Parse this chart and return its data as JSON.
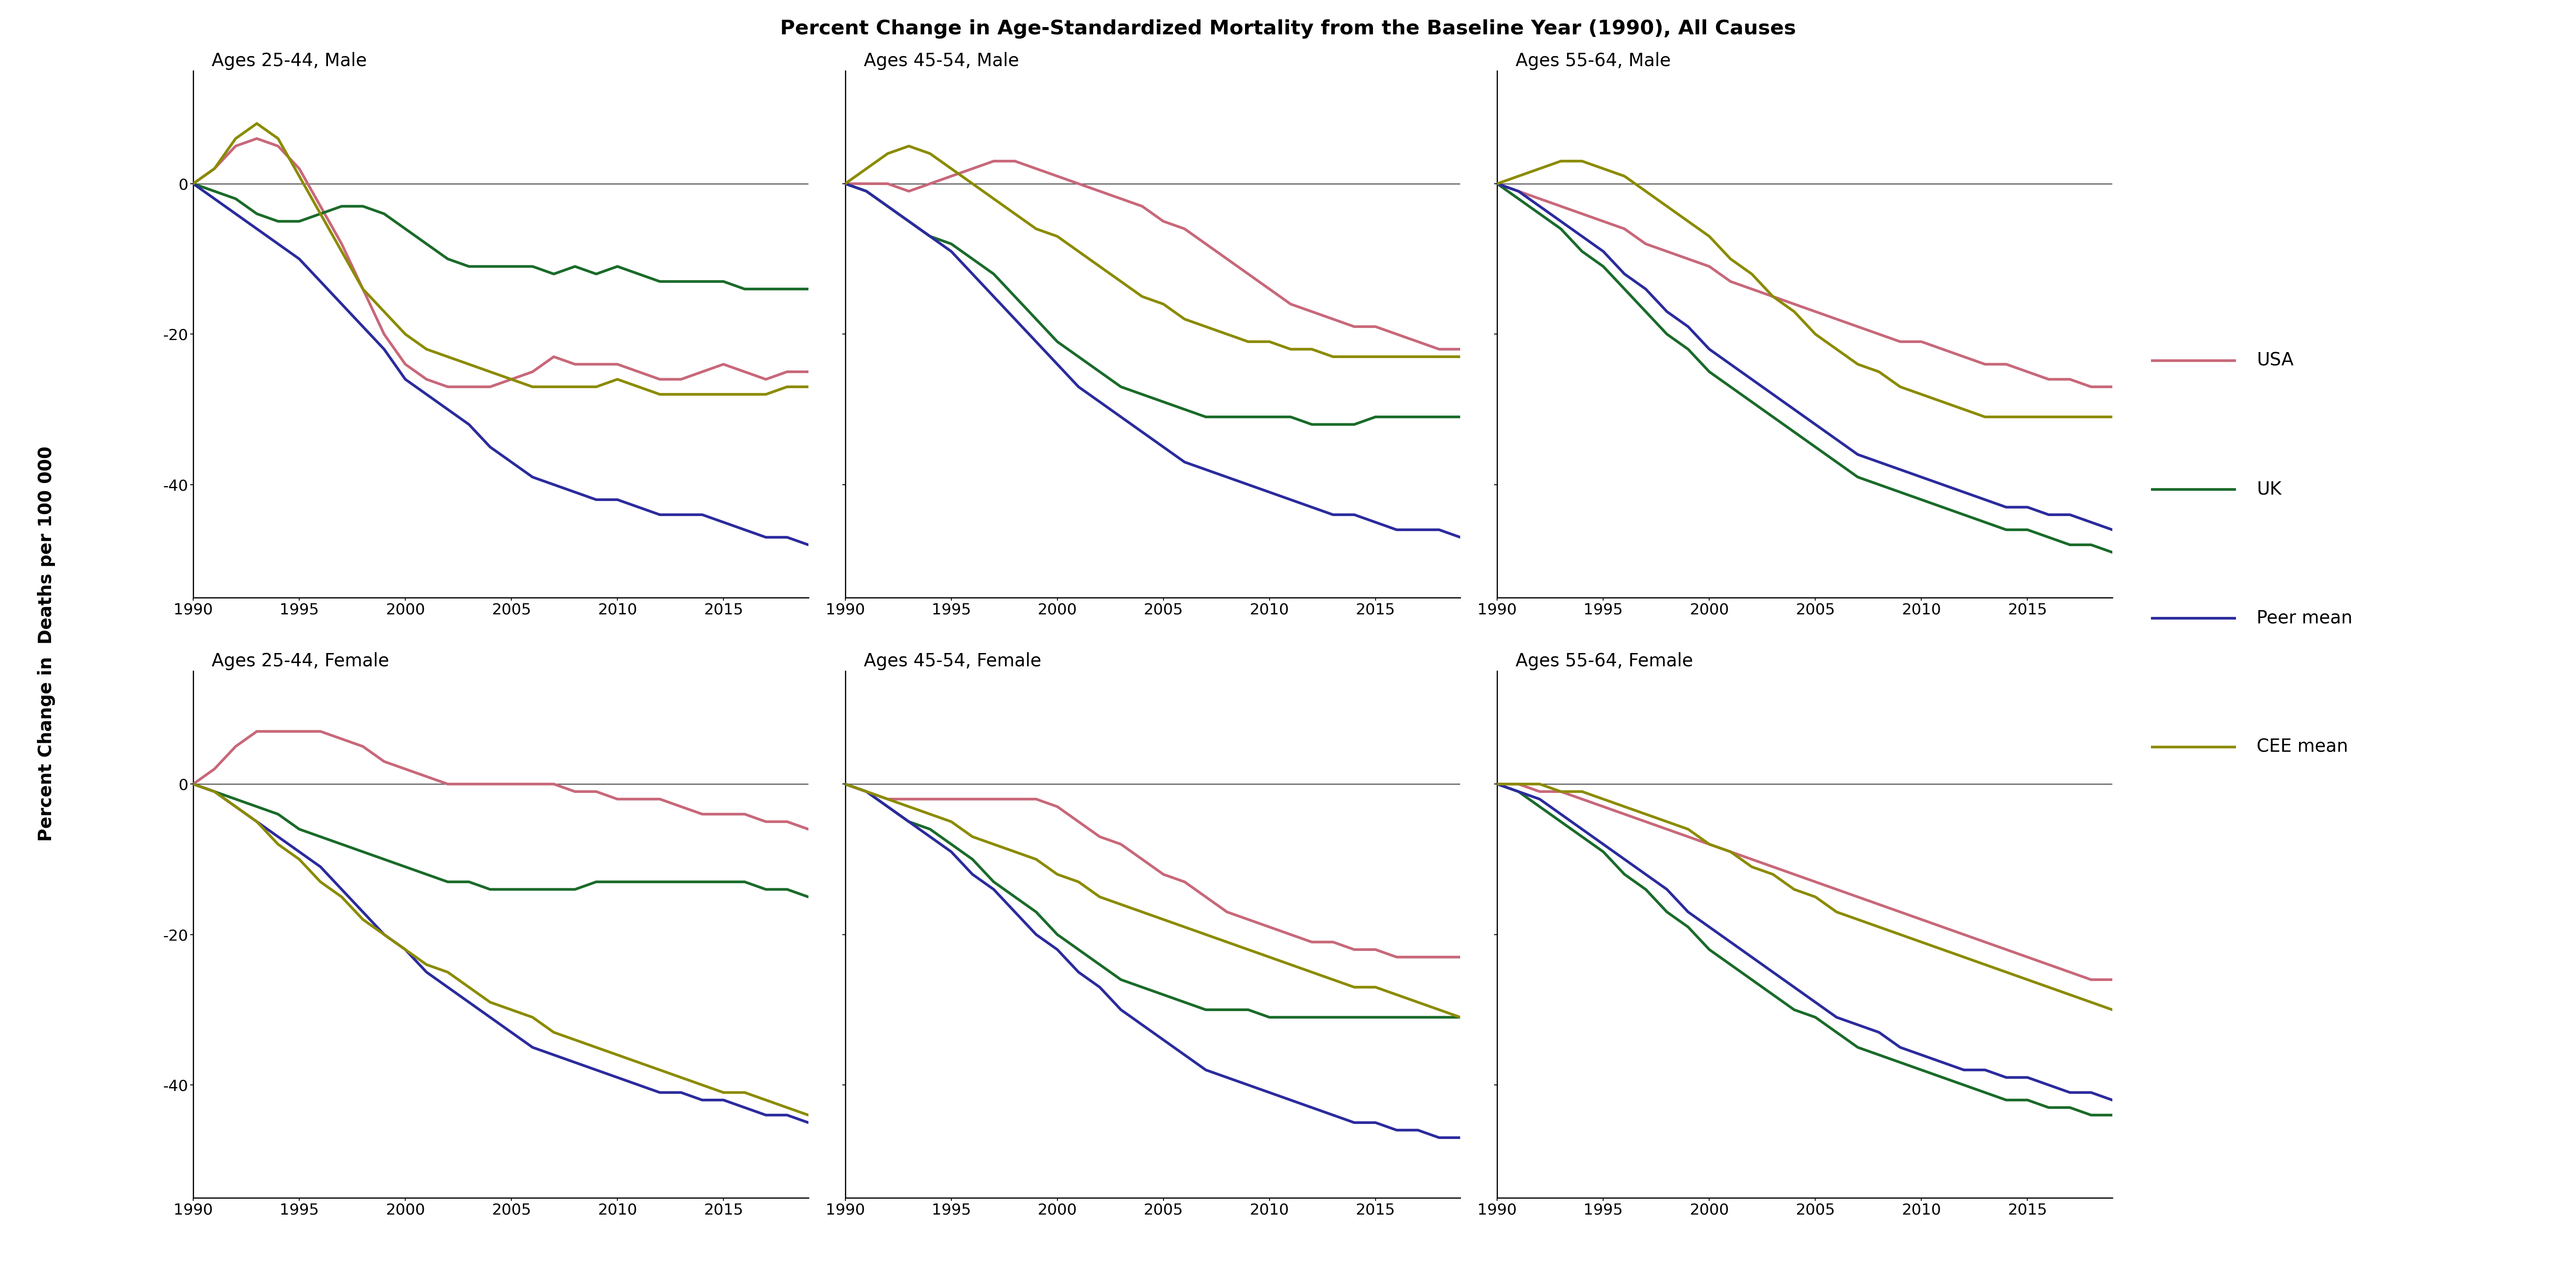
{
  "title": "Percent Change in Age-Standardized Mortality from the Baseline Year (1990), All Causes",
  "ylabel": "Percent Change in  Deaths per 100 000",
  "colors": {
    "USA": "#c8687a",
    "UK": "#1a6b2a",
    "Peer mean": "#2b2b9e",
    "CEE mean": "#8b8b00"
  },
  "years": [
    1990,
    1991,
    1992,
    1993,
    1994,
    1995,
    1996,
    1997,
    1998,
    1999,
    2000,
    2001,
    2002,
    2003,
    2004,
    2005,
    2006,
    2007,
    2008,
    2009,
    2010,
    2011,
    2012,
    2013,
    2014,
    2015,
    2016,
    2017,
    2018,
    2019
  ],
  "panels": {
    "Ages 25-44, Male": {
      "USA": [
        0,
        2,
        5,
        6,
        5,
        2,
        -3,
        -8,
        -14,
        -20,
        -24,
        -26,
        -27,
        -27,
        -27,
        -26,
        -25,
        -23,
        -24,
        -24,
        -24,
        -25,
        -26,
        -26,
        -25,
        -24,
        -25,
        -26,
        -25,
        -25
      ],
      "UK": [
        0,
        -1,
        -2,
        -4,
        -5,
        -5,
        -4,
        -3,
        -3,
        -4,
        -6,
        -8,
        -10,
        -11,
        -11,
        -11,
        -11,
        -12,
        -11,
        -12,
        -11,
        -12,
        -13,
        -13,
        -13,
        -13,
        -14,
        -14,
        -14,
        -14
      ],
      "Peer mean": [
        0,
        -2,
        -4,
        -6,
        -8,
        -10,
        -13,
        -16,
        -19,
        -22,
        -26,
        -28,
        -30,
        -32,
        -35,
        -37,
        -39,
        -40,
        -41,
        -42,
        -42,
        -43,
        -44,
        -44,
        -44,
        -45,
        -46,
        -47,
        -47,
        -48
      ],
      "CEE mean": [
        0,
        2,
        6,
        8,
        6,
        1,
        -4,
        -9,
        -14,
        -17,
        -20,
        -22,
        -23,
        -24,
        -25,
        -26,
        -27,
        -27,
        -27,
        -27,
        -26,
        -27,
        -28,
        -28,
        -28,
        -28,
        -28,
        -28,
        -27,
        -27
      ]
    },
    "Ages 45-54, Male": {
      "USA": [
        0,
        0,
        0,
        -1,
        0,
        1,
        2,
        3,
        3,
        2,
        1,
        0,
        -1,
        -2,
        -3,
        -5,
        -6,
        -8,
        -10,
        -12,
        -14,
        -16,
        -17,
        -18,
        -19,
        -19,
        -20,
        -21,
        -22,
        -22
      ],
      "UK": [
        0,
        -1,
        -3,
        -5,
        -7,
        -8,
        -10,
        -12,
        -15,
        -18,
        -21,
        -23,
        -25,
        -27,
        -28,
        -29,
        -30,
        -31,
        -31,
        -31,
        -31,
        -31,
        -32,
        -32,
        -32,
        -31,
        -31,
        -31,
        -31,
        -31
      ],
      "Peer mean": [
        0,
        -1,
        -3,
        -5,
        -7,
        -9,
        -12,
        -15,
        -18,
        -21,
        -24,
        -27,
        -29,
        -31,
        -33,
        -35,
        -37,
        -38,
        -39,
        -40,
        -41,
        -42,
        -43,
        -44,
        -44,
        -45,
        -46,
        -46,
        -46,
        -47
      ],
      "CEE mean": [
        0,
        2,
        4,
        5,
        4,
        2,
        0,
        -2,
        -4,
        -6,
        -7,
        -9,
        -11,
        -13,
        -15,
        -16,
        -18,
        -19,
        -20,
        -21,
        -21,
        -22,
        -22,
        -23,
        -23,
        -23,
        -23,
        -23,
        -23,
        -23
      ]
    },
    "Ages 55-64, Male": {
      "USA": [
        0,
        -1,
        -2,
        -3,
        -4,
        -5,
        -6,
        -8,
        -9,
        -10,
        -11,
        -13,
        -14,
        -15,
        -16,
        -17,
        -18,
        -19,
        -20,
        -21,
        -21,
        -22,
        -23,
        -24,
        -24,
        -25,
        -26,
        -26,
        -27,
        -27
      ],
      "UK": [
        0,
        -2,
        -4,
        -6,
        -9,
        -11,
        -14,
        -17,
        -20,
        -22,
        -25,
        -27,
        -29,
        -31,
        -33,
        -35,
        -37,
        -39,
        -40,
        -41,
        -42,
        -43,
        -44,
        -45,
        -46,
        -46,
        -47,
        -48,
        -48,
        -49
      ],
      "Peer mean": [
        0,
        -1,
        -3,
        -5,
        -7,
        -9,
        -12,
        -14,
        -17,
        -19,
        -22,
        -24,
        -26,
        -28,
        -30,
        -32,
        -34,
        -36,
        -37,
        -38,
        -39,
        -40,
        -41,
        -42,
        -43,
        -43,
        -44,
        -44,
        -45,
        -46
      ],
      "CEE mean": [
        0,
        1,
        2,
        3,
        3,
        2,
        1,
        -1,
        -3,
        -5,
        -7,
        -10,
        -12,
        -15,
        -17,
        -20,
        -22,
        -24,
        -25,
        -27,
        -28,
        -29,
        -30,
        -31,
        -31,
        -31,
        -31,
        -31,
        -31,
        -31
      ]
    },
    "Ages 25-44, Female": {
      "USA": [
        0,
        2,
        5,
        7,
        7,
        7,
        7,
        6,
        5,
        3,
        2,
        1,
        0,
        0,
        0,
        0,
        0,
        0,
        -1,
        -1,
        -2,
        -2,
        -2,
        -3,
        -4,
        -4,
        -4,
        -5,
        -5,
        -6
      ],
      "UK": [
        0,
        -1,
        -2,
        -3,
        -4,
        -6,
        -7,
        -8,
        -9,
        -10,
        -11,
        -12,
        -13,
        -13,
        -14,
        -14,
        -14,
        -14,
        -14,
        -13,
        -13,
        -13,
        -13,
        -13,
        -13,
        -13,
        -13,
        -14,
        -14,
        -15
      ],
      "Peer mean": [
        0,
        -1,
        -3,
        -5,
        -7,
        -9,
        -11,
        -14,
        -17,
        -20,
        -22,
        -25,
        -27,
        -29,
        -31,
        -33,
        -35,
        -36,
        -37,
        -38,
        -39,
        -40,
        -41,
        -41,
        -42,
        -42,
        -43,
        -44,
        -44,
        -45
      ],
      "CEE mean": [
        0,
        -1,
        -3,
        -5,
        -8,
        -10,
        -13,
        -15,
        -18,
        -20,
        -22,
        -24,
        -25,
        -27,
        -29,
        -30,
        -31,
        -33,
        -34,
        -35,
        -36,
        -37,
        -38,
        -39,
        -40,
        -41,
        -41,
        -42,
        -43,
        -44
      ]
    },
    "Ages 45-54, Female": {
      "USA": [
        0,
        -1,
        -2,
        -2,
        -2,
        -2,
        -2,
        -2,
        -2,
        -2,
        -3,
        -5,
        -7,
        -8,
        -10,
        -12,
        -13,
        -15,
        -17,
        -18,
        -19,
        -20,
        -21,
        -21,
        -22,
        -22,
        -23,
        -23,
        -23,
        -23
      ],
      "UK": [
        0,
        -1,
        -3,
        -5,
        -6,
        -8,
        -10,
        -13,
        -15,
        -17,
        -20,
        -22,
        -24,
        -26,
        -27,
        -28,
        -29,
        -30,
        -30,
        -30,
        -31,
        -31,
        -31,
        -31,
        -31,
        -31,
        -31,
        -31,
        -31,
        -31
      ],
      "Peer mean": [
        0,
        -1,
        -3,
        -5,
        -7,
        -9,
        -12,
        -14,
        -17,
        -20,
        -22,
        -25,
        -27,
        -30,
        -32,
        -34,
        -36,
        -38,
        -39,
        -40,
        -41,
        -42,
        -43,
        -44,
        -45,
        -45,
        -46,
        -46,
        -47,
        -47
      ],
      "CEE mean": [
        0,
        -1,
        -2,
        -3,
        -4,
        -5,
        -7,
        -8,
        -9,
        -10,
        -12,
        -13,
        -15,
        -16,
        -17,
        -18,
        -19,
        -20,
        -21,
        -22,
        -23,
        -24,
        -25,
        -26,
        -27,
        -27,
        -28,
        -29,
        -30,
        -31
      ]
    },
    "Ages 55-64, Female": {
      "USA": [
        0,
        0,
        -1,
        -1,
        -2,
        -3,
        -4,
        -5,
        -6,
        -7,
        -8,
        -9,
        -10,
        -11,
        -12,
        -13,
        -14,
        -15,
        -16,
        -17,
        -18,
        -19,
        -20,
        -21,
        -22,
        -23,
        -24,
        -25,
        -26,
        -26
      ],
      "UK": [
        0,
        -1,
        -3,
        -5,
        -7,
        -9,
        -12,
        -14,
        -17,
        -19,
        -22,
        -24,
        -26,
        -28,
        -30,
        -31,
        -33,
        -35,
        -36,
        -37,
        -38,
        -39,
        -40,
        -41,
        -42,
        -42,
        -43,
        -43,
        -44,
        -44
      ],
      "Peer mean": [
        0,
        -1,
        -2,
        -4,
        -6,
        -8,
        -10,
        -12,
        -14,
        -17,
        -19,
        -21,
        -23,
        -25,
        -27,
        -29,
        -31,
        -32,
        -33,
        -35,
        -36,
        -37,
        -38,
        -38,
        -39,
        -39,
        -40,
        -41,
        -41,
        -42
      ],
      "CEE mean": [
        0,
        0,
        0,
        -1,
        -1,
        -2,
        -3,
        -4,
        -5,
        -6,
        -8,
        -9,
        -11,
        -12,
        -14,
        -15,
        -17,
        -18,
        -19,
        -20,
        -21,
        -22,
        -23,
        -24,
        -25,
        -26,
        -27,
        -28,
        -29,
        -30
      ]
    }
  },
  "panel_order": [
    "Ages 25-44, Male",
    "Ages 45-54, Male",
    "Ages 55-64, Male",
    "Ages 25-44, Female",
    "Ages 45-54, Female",
    "Ages 55-64, Female"
  ],
  "ylim": [
    -55,
    15
  ],
  "yticks": [
    -40,
    -20,
    0
  ],
  "xticks": [
    1990,
    1995,
    2000,
    2005,
    2010,
    2015
  ],
  "linewidth": 4.5,
  "legend_labels": [
    "USA",
    "UK",
    "Peer mean",
    "CEE mean"
  ]
}
